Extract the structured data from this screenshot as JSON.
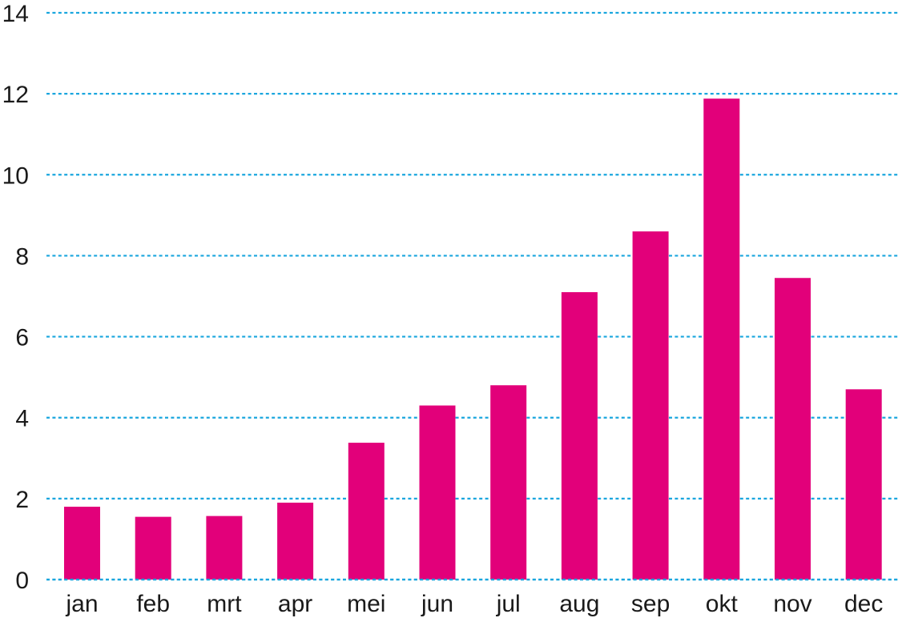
{
  "chart_data": {
    "type": "bar",
    "categories": [
      "jan",
      "feb",
      "mrt",
      "apr",
      "mei",
      "jun",
      "jul",
      "aug",
      "sep",
      "okt",
      "nov",
      "dec"
    ],
    "values": [
      1.8,
      1.55,
      1.57,
      1.9,
      3.38,
      4.3,
      4.8,
      7.1,
      8.6,
      11.88,
      7.45,
      4.7
    ],
    "title": "",
    "xlabel": "",
    "ylabel": "",
    "ylim": [
      0,
      14
    ],
    "yticks": [
      "0",
      "2",
      "4",
      "6",
      "8",
      "10",
      "12",
      "14"
    ],
    "grid": true,
    "grid_style": "dotted",
    "legend": "none",
    "colors": {
      "bar": "#e2007a",
      "grid": "#1aa6de",
      "text": "#1a1a1a"
    }
  }
}
